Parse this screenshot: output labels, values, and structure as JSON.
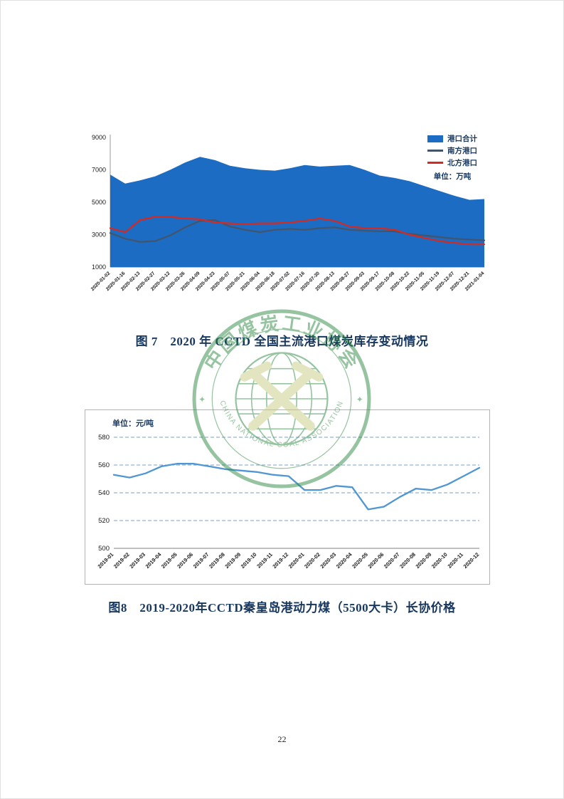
{
  "page": {
    "number": "22"
  },
  "watermark": {
    "ring_text_top": "中国煤炭工业协会",
    "ring_text_bottom": "CHINA NATIONAL COAL ASSOCIATION",
    "separator": "✦"
  },
  "chart_data": [
    {
      "type": "area",
      "caption": "图 7　2020 年 CCTD 全国主流港口煤炭库存变动情况",
      "unit_label": "单位：万吨",
      "ylim": [
        1000,
        9000
      ],
      "yticks": [
        1000,
        3000,
        5000,
        7000,
        9000
      ],
      "grid": false,
      "legend_position": "top-right",
      "categories": [
        "2020-01-02",
        "2020-01-16",
        "2020-02-13",
        "2020-02-27",
        "2020-03-12",
        "2020-03-26",
        "2020-04-09",
        "2020-04-23",
        "2020-05-07",
        "2020-05-21",
        "2020-06-04",
        "2020-06-18",
        "2020-07-02",
        "2020-07-16",
        "2020-07-30",
        "2020-08-13",
        "2020-08-27",
        "2020-09-03",
        "2020-09-17",
        "2020-10-08",
        "2020-10-22",
        "2020-11-05",
        "2020-11-19",
        "2020-12-07",
        "2020-12-21",
        "2021-01-04"
      ],
      "series": [
        {
          "name": "港口合计",
          "type": "area",
          "color": "#1b6cc2",
          "values": [
            6700,
            6150,
            6350,
            6600,
            7000,
            7450,
            7800,
            7600,
            7250,
            7100,
            7000,
            6950,
            7100,
            7300,
            7200,
            7250,
            7300,
            7000,
            6650,
            6500,
            6300,
            6000,
            5700,
            5400,
            5150,
            5200
          ]
        },
        {
          "name": "南方港口",
          "type": "line",
          "color": "#44546a",
          "values": [
            3100,
            2750,
            2550,
            2600,
            2950,
            3450,
            3850,
            3900,
            3500,
            3300,
            3150,
            3300,
            3350,
            3300,
            3400,
            3450,
            3300,
            3250,
            3200,
            3200,
            3050,
            2950,
            2850,
            2750,
            2700,
            2650
          ]
        },
        {
          "name": "北方港口",
          "type": "line",
          "color": "#d42a22",
          "values": [
            3400,
            3150,
            3900,
            4100,
            4100,
            4000,
            3950,
            3750,
            3700,
            3650,
            3700,
            3700,
            3750,
            3850,
            4000,
            3850,
            3500,
            3400,
            3400,
            3300,
            3000,
            2800,
            2600,
            2500,
            2400,
            2400
          ]
        }
      ]
    },
    {
      "type": "line",
      "caption": "图8　2019-2020年CCTD秦皇岛港动力煤（5500大卡）长协价格",
      "unit_label": "单位：元/吨",
      "ylim": [
        500,
        580
      ],
      "yticks": [
        500,
        520,
        540,
        560,
        580
      ],
      "grid": true,
      "categories": [
        "2019-01",
        "2019-02",
        "2019-03",
        "2019-04",
        "2019-05",
        "2019-06",
        "2019-07",
        "2019-08",
        "2019-09",
        "2019-10",
        "2019-11",
        "2019-12",
        "2020-01",
        "2020-02",
        "2020-03",
        "2020-04",
        "2020-05",
        "2020-06",
        "2020-07",
        "2020-08",
        "2020-09",
        "2020-10",
        "2020-11",
        "2020-12"
      ],
      "series": [
        {
          "name": "长协价格",
          "type": "line",
          "color": "#4f96d2",
          "values": [
            553,
            551,
            554,
            559,
            561,
            561,
            559,
            557,
            556,
            555,
            553,
            552,
            542,
            542,
            545,
            544,
            528,
            530,
            537,
            543,
            542,
            546,
            552,
            558
          ]
        }
      ]
    }
  ]
}
